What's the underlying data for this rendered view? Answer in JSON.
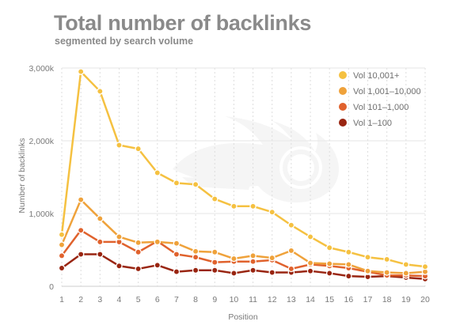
{
  "chart_data": {
    "type": "line",
    "title": "Total number of backlinks",
    "subtitle": "segmented by search volume",
    "xlabel": "Position",
    "ylabel": "Number of backlinks",
    "x": [
      1,
      2,
      3,
      4,
      5,
      6,
      7,
      8,
      9,
      10,
      11,
      12,
      13,
      14,
      15,
      16,
      17,
      18,
      19,
      20
    ],
    "ylim": [
      0,
      3000000
    ],
    "yticks": [
      {
        "value": 0,
        "label": "0"
      },
      {
        "value": 1000000,
        "label": "1,000k"
      },
      {
        "value": 2000000,
        "label": "2,000k"
      },
      {
        "value": 3000000,
        "label": "3,000k"
      }
    ],
    "series": [
      {
        "name": "Vol 10,001+",
        "color": "#f5c141",
        "values": [
          710000,
          2950000,
          2680000,
          1940000,
          1890000,
          1560000,
          1420000,
          1400000,
          1200000,
          1100000,
          1100000,
          1020000,
          840000,
          680000,
          530000,
          470000,
          400000,
          370000,
          300000,
          270000
        ]
      },
      {
        "name": "Vol 1,001–10,000",
        "color": "#efa23b",
        "values": [
          570000,
          1190000,
          930000,
          680000,
          600000,
          610000,
          590000,
          480000,
          470000,
          380000,
          420000,
          390000,
          490000,
          320000,
          310000,
          300000,
          210000,
          190000,
          180000,
          200000
        ]
      },
      {
        "name": "Vol 101–1,000",
        "color": "#e0622d",
        "values": [
          420000,
          770000,
          610000,
          610000,
          470000,
          620000,
          440000,
          400000,
          330000,
          340000,
          340000,
          360000,
          240000,
          300000,
          280000,
          250000,
          200000,
          150000,
          150000,
          140000
        ]
      },
      {
        "name": "Vol 1–100",
        "color": "#992511",
        "values": [
          250000,
          440000,
          440000,
          280000,
          240000,
          290000,
          200000,
          220000,
          220000,
          180000,
          220000,
          190000,
          190000,
          210000,
          180000,
          140000,
          130000,
          140000,
          120000,
          100000
        ]
      }
    ],
    "legend": {
      "position": "top-right"
    },
    "grid": true
  }
}
